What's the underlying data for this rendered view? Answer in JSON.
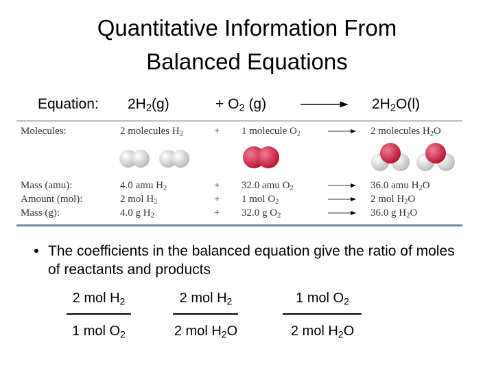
{
  "title": [
    "Quantitative Information From",
    "Balanced Equations"
  ],
  "equation": {
    "label": "Equation:",
    "reactant1": [
      "2H",
      "2",
      "(g)"
    ],
    "reactant2": [
      "+  O",
      "2",
      " (g)"
    ],
    "product": [
      "2H",
      "2",
      "O(l)"
    ]
  },
  "table": {
    "rows": [
      {
        "label": "Molecules:",
        "cells": [
          [
            "2 molecules H",
            "2"
          ],
          [
            "+"
          ],
          [
            "1 molecule O",
            "2"
          ],
          [
            "2 molecules H",
            "2",
            "O"
          ]
        ]
      },
      {
        "label": "Mass (amu):",
        "cells": [
          [
            "4.0 amu H",
            "2"
          ],
          [
            "+"
          ],
          [
            "32.0 amu O",
            "2"
          ],
          [
            "36.0 amu H",
            "2",
            "O"
          ]
        ]
      },
      {
        "label": "Amount (mol):",
        "cells": [
          [
            "2 mol H",
            "2"
          ],
          [
            "+"
          ],
          [
            "1 mol O",
            "2"
          ],
          [
            "2 mol H",
            "2",
            "O"
          ]
        ]
      },
      {
        "label": "Mass (g):",
        "cells": [
          [
            "4.0 g H",
            "2"
          ],
          [
            "+"
          ],
          [
            "32.0 g O",
            "2"
          ],
          [
            "36.0 g H",
            "2",
            "O"
          ]
        ]
      }
    ]
  },
  "bullet": "The coefficients in the balanced equation give the ratio of moles of reactants and products",
  "fractions": [
    {
      "numerator": [
        "2 mol H",
        "2"
      ],
      "denominator": [
        "1 mol O",
        "2"
      ]
    },
    {
      "numerator": [
        "2 mol H",
        "2"
      ],
      "denominator": [
        "2 mol H",
        "2",
        "O"
      ]
    },
    {
      "numerator": [
        "1 mol O",
        "2"
      ],
      "denominator": [
        "2 mol H",
        "2",
        "O"
      ]
    }
  ]
}
